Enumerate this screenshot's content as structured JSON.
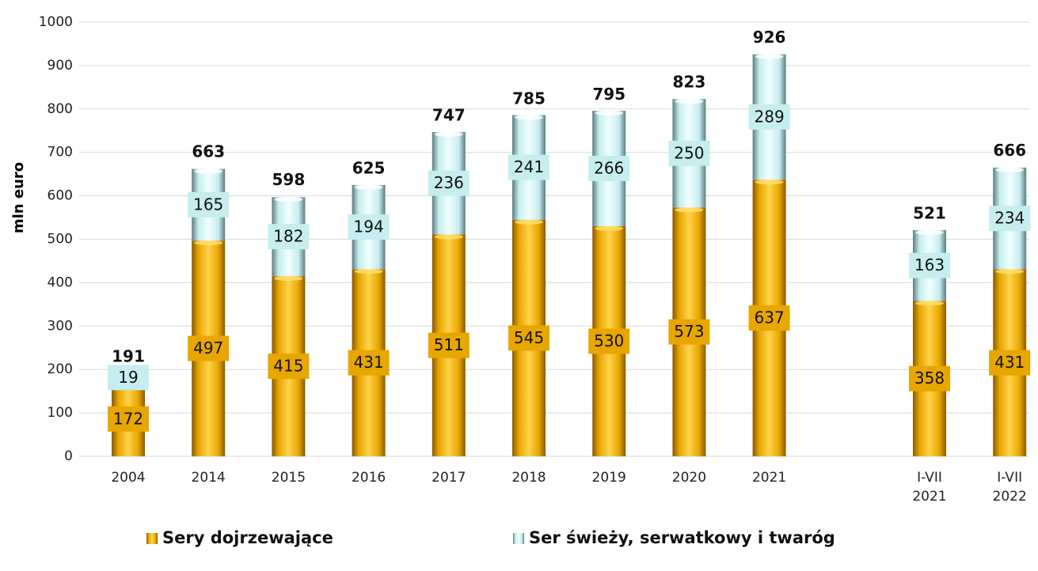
{
  "chart_data": {
    "type": "stacked_bar",
    "y_label": "mln euro",
    "categories": [
      "2004",
      "2014",
      "2015",
      "2016",
      "2017",
      "2018",
      "2019",
      "2020",
      "2021",
      null,
      "I-VII 2021",
      "I-VII 2022"
    ],
    "series": [
      {
        "name": "Sery dojrzewające",
        "color": "#e8a600",
        "values": [
          172,
          497,
          415,
          431,
          511,
          545,
          530,
          573,
          637,
          null,
          358,
          431
        ]
      },
      {
        "name": "Ser świeży, serwatkowy i twaróg",
        "color": "#c6edf0",
        "values": [
          19,
          165,
          182,
          194,
          236,
          241,
          266,
          250,
          289,
          null,
          163,
          234
        ]
      }
    ],
    "totals": [
      191,
      663,
      598,
      625,
      747,
      785,
      795,
      823,
      926,
      null,
      521,
      666
    ],
    "ylim": [
      0,
      1000
    ],
    "yticks": [
      0,
      100,
      200,
      300,
      400,
      500,
      600,
      700,
      800,
      900,
      1000
    ],
    "grid": true,
    "legend": "bottom"
  }
}
